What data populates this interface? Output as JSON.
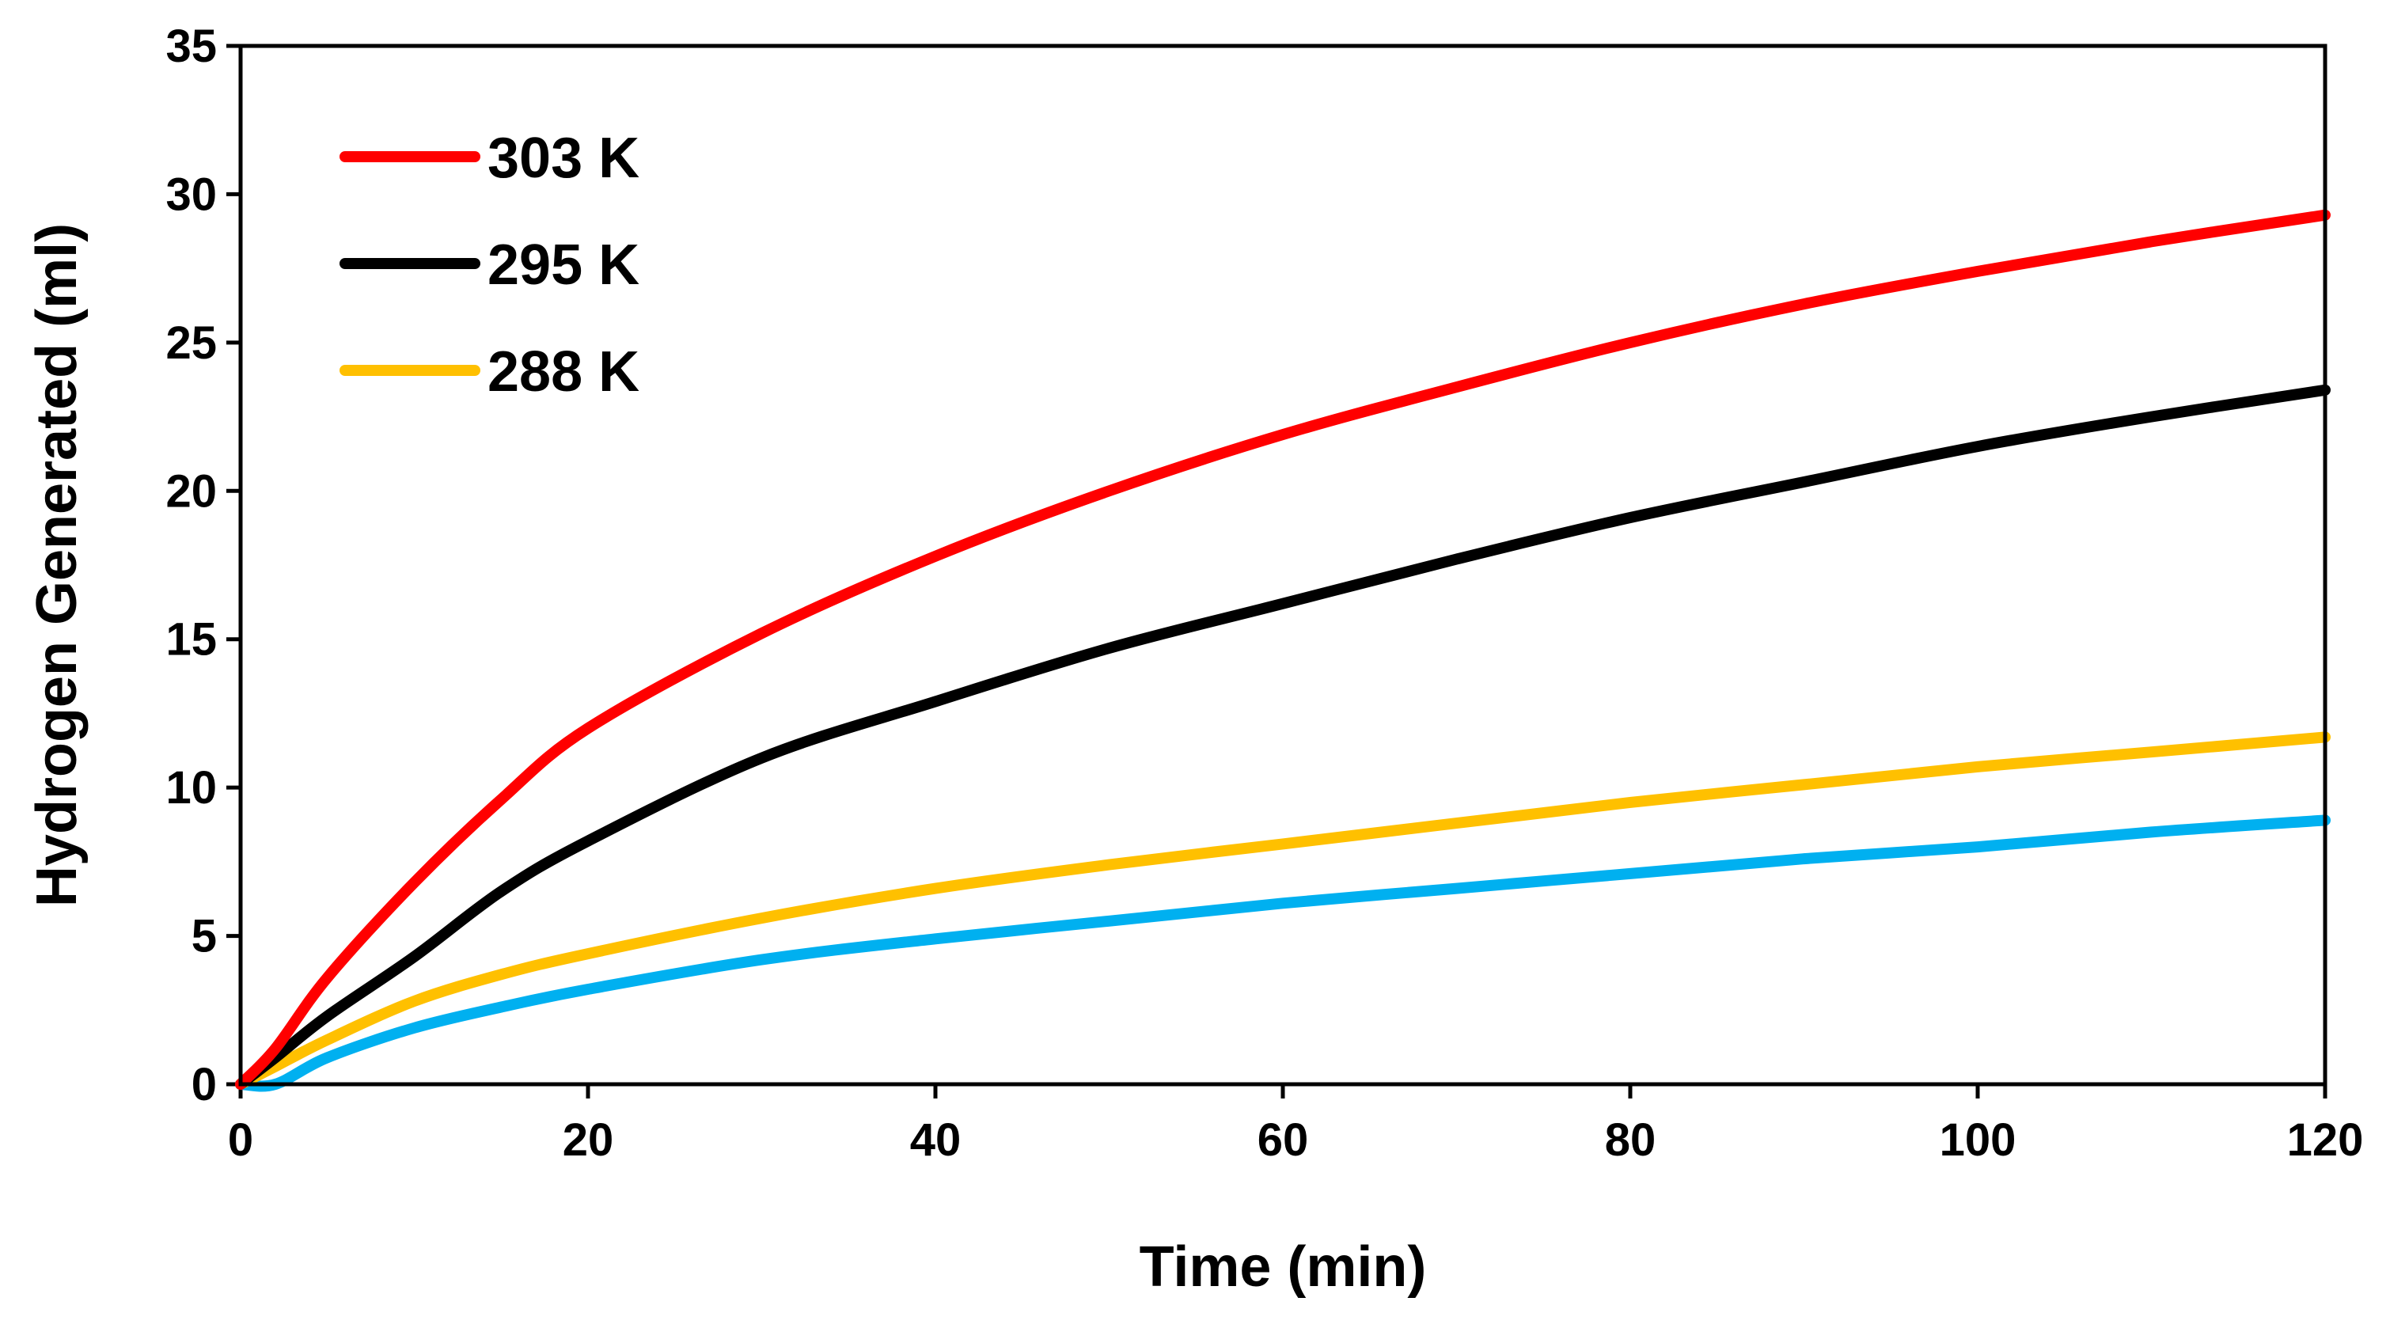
{
  "chart_data": {
    "type": "line",
    "title": "",
    "xlabel": "Time (min)",
    "ylabel": "Hydrogen Generated (ml)",
    "xlim": [
      0,
      120
    ],
    "ylim": [
      0,
      35
    ],
    "xticks": [
      0,
      20,
      40,
      60,
      80,
      100,
      120
    ],
    "yticks": [
      0,
      5,
      10,
      15,
      20,
      25,
      30,
      35
    ],
    "grid": false,
    "legend_position": "top-left",
    "x": [
      0,
      2,
      5,
      10,
      15,
      20,
      30,
      40,
      50,
      60,
      70,
      80,
      90,
      100,
      110,
      120
    ],
    "series": [
      {
        "name": "303 K",
        "color": "#FF0000",
        "in_legend": true,
        "values": [
          0.0,
          1.2,
          3.6,
          6.8,
          9.6,
          12.0,
          15.2,
          17.8,
          20.0,
          21.9,
          23.5,
          25.0,
          26.3,
          27.4,
          28.4,
          29.3
        ]
      },
      {
        "name": "295 K",
        "color": "#000000",
        "in_legend": true,
        "values": [
          0.0,
          0.9,
          2.3,
          4.3,
          6.5,
          8.2,
          11.0,
          12.9,
          14.7,
          16.2,
          17.7,
          19.1,
          20.3,
          21.5,
          22.5,
          23.4
        ]
      },
      {
        "name": "288 K",
        "color": "#FFC000",
        "in_legend": true,
        "values": [
          0.0,
          0.6,
          1.5,
          2.8,
          3.7,
          4.4,
          5.6,
          6.6,
          7.4,
          8.1,
          8.8,
          9.5,
          10.1,
          10.7,
          11.2,
          11.7
        ]
      },
      {
        "name": "",
        "color": "#00B0F0",
        "in_legend": false,
        "values": [
          0.0,
          0.0,
          0.9,
          1.9,
          2.6,
          3.2,
          4.2,
          4.9,
          5.5,
          6.1,
          6.6,
          7.1,
          7.6,
          8.0,
          8.5,
          8.9
        ]
      }
    ]
  }
}
